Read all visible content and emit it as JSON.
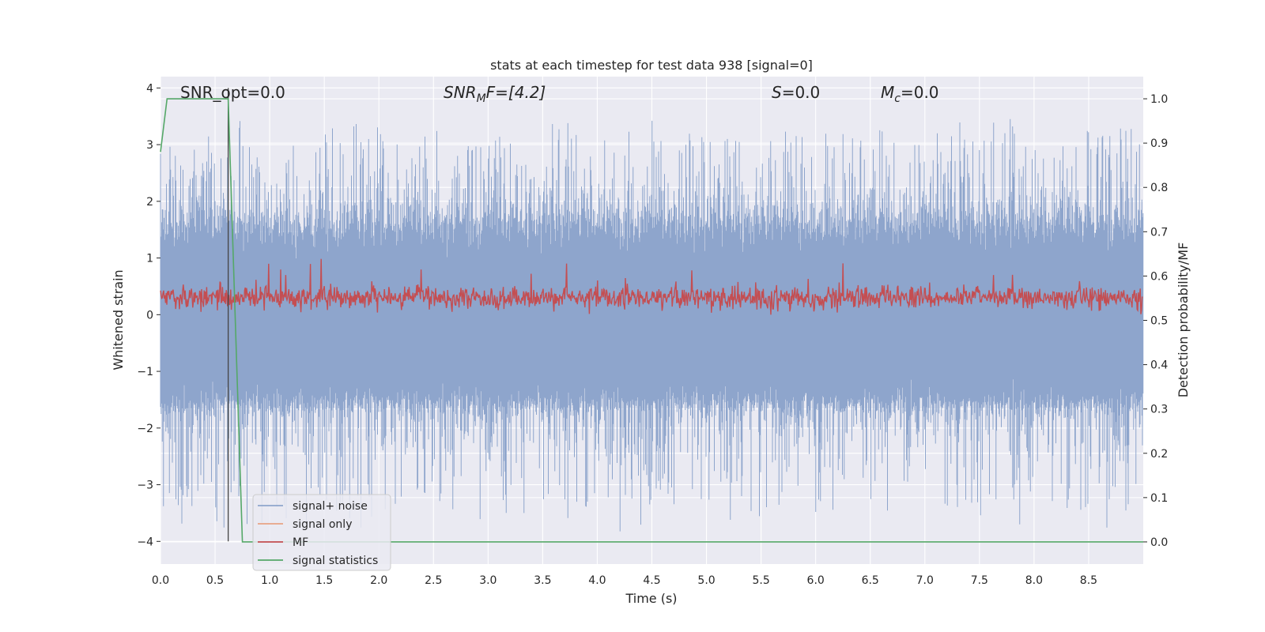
{
  "chart_data": {
    "type": "line",
    "title": "stats at each timestep for test data 938 [signal=0]",
    "xlabel": "Time (s)",
    "ylabel_left": "Whitened strain",
    "ylabel_right": "Detection probability/MF",
    "xlim": [
      0.0,
      9.0
    ],
    "ylim_left": [
      -4.4,
      4.2
    ],
    "ylim_right": [
      -0.05,
      1.05
    ],
    "xticks": [
      "0.0",
      "0.5",
      "1.0",
      "1.5",
      "2.0",
      "2.5",
      "3.0",
      "3.5",
      "4.0",
      "4.5",
      "5.0",
      "5.5",
      "6.0",
      "6.5",
      "7.0",
      "7.5",
      "8.0",
      "8.5"
    ],
    "yticks_left": [
      "4",
      "3",
      "2",
      "1",
      "0",
      "−1",
      "−2",
      "−3",
      "−4"
    ],
    "yticks_right": [
      "1.0",
      "0.9",
      "0.8",
      "0.7",
      "0.6",
      "0.5",
      "0.4",
      "0.3",
      "0.2",
      "0.1",
      "0.0"
    ],
    "grid": true,
    "legend_position": "lower-left",
    "annotations": {
      "snr_opt": "SNR_opt=0.0",
      "snr_mf_main": "SNR",
      "snr_mf_sub": "M",
      "snr_mf_rest": "F=[4.2]",
      "s_main": "S",
      "s_rest": "=0.0",
      "mc_main": "M",
      "mc_sub": "c",
      "mc_rest": "=0.0"
    },
    "series": [
      {
        "name": "signal+ noise",
        "color": "#8ea5cc",
        "axis": "left",
        "noise": {
          "t_start": 0.0,
          "t_end": 9.0,
          "envelope_typical": [
            -1.6,
            2.0
          ],
          "envelope_extreme": [
            -4.0,
            3.45
          ]
        }
      },
      {
        "name": "signal only",
        "color": "#e8a385",
        "axis": "left",
        "x": [],
        "y": []
      },
      {
        "name": "MF",
        "color": "#c44e52",
        "axis": "left",
        "noise": {
          "t_start": 0.0,
          "t_end": 9.0,
          "baseline": 0.3,
          "typical_range": [
            0.05,
            0.6
          ],
          "max": 1.0
        }
      },
      {
        "name": "signal statistics",
        "color": "#55a868",
        "axis": "right",
        "x": [
          0.0,
          0.06,
          0.62,
          0.75,
          9.0
        ],
        "y": [
          0.88,
          1.0,
          1.0,
          0.0,
          0.0
        ]
      }
    ],
    "vline": {
      "x": 0.62,
      "y_from": -4.0,
      "y_to": 4.0,
      "color": "#444444"
    }
  }
}
